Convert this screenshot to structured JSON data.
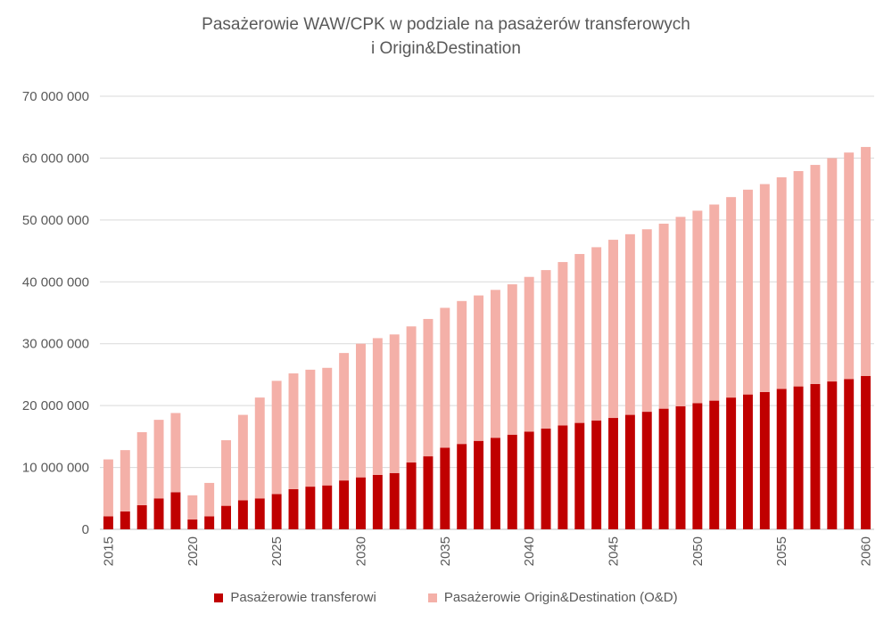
{
  "chart_data": {
    "type": "bar",
    "stacked": true,
    "title": "Pasażerowie WAW/CPK w podziale na pasażerów transferowych",
    "subtitle": "i Origin&Destination",
    "xlabel": "",
    "ylabel": "",
    "ylim": [
      0,
      70000000
    ],
    "y_ticks": [
      "0",
      "10 000 000",
      "20 000 000",
      "30 000 000",
      "40 000 000",
      "50 000 000",
      "60 000 000",
      "70 000 000"
    ],
    "y_tick_values": [
      0,
      10000000,
      20000000,
      30000000,
      40000000,
      50000000,
      60000000,
      70000000
    ],
    "x_tick_labels": [
      "2015",
      "2020",
      "2025",
      "2030",
      "2035",
      "2040",
      "2045",
      "2050",
      "2055",
      "2060"
    ],
    "grid": true,
    "legend_position": "bottom",
    "categories": [
      2015,
      2016,
      2017,
      2018,
      2019,
      2020,
      2021,
      2022,
      2023,
      2024,
      2025,
      2026,
      2027,
      2028,
      2029,
      2030,
      2031,
      2032,
      2033,
      2034,
      2035,
      2036,
      2037,
      2038,
      2039,
      2040,
      2041,
      2042,
      2043,
      2044,
      2045,
      2046,
      2047,
      2048,
      2049,
      2050,
      2051,
      2052,
      2053,
      2054,
      2055,
      2056,
      2057,
      2058,
      2059,
      2060
    ],
    "series": [
      {
        "name": "Pasażerowie transferowi",
        "color": "#c00000",
        "values": [
          2100000,
          2900000,
          3900000,
          5000000,
          6000000,
          1600000,
          2100000,
          3800000,
          4700000,
          5000000,
          5700000,
          6500000,
          6900000,
          7100000,
          7900000,
          8400000,
          8800000,
          9100000,
          10800000,
          11800000,
          13200000,
          13800000,
          14300000,
          14800000,
          15300000,
          15800000,
          16300000,
          16800000,
          17200000,
          17600000,
          18000000,
          18500000,
          19000000,
          19500000,
          19900000,
          20400000,
          20800000,
          21300000,
          21800000,
          22200000,
          22700000,
          23100000,
          23500000,
          23900000,
          24300000,
          24800000
        ]
      },
      {
        "name": "Pasażerowie Origin&Destination (O&D)",
        "color": "#f4b0a8",
        "values": [
          9200000,
          9900000,
          11800000,
          12700000,
          12800000,
          3900000,
          5400000,
          10600000,
          13800000,
          16300000,
          18300000,
          18700000,
          18900000,
          19000000,
          20600000,
          21600000,
          22100000,
          22400000,
          22000000,
          22200000,
          22600000,
          23100000,
          23500000,
          23900000,
          24300000,
          25000000,
          25600000,
          26400000,
          27300000,
          28000000,
          28800000,
          29200000,
          29500000,
          29900000,
          30600000,
          31100000,
          31700000,
          32400000,
          33100000,
          33600000,
          34200000,
          34800000,
          35400000,
          36100000,
          36600000,
          37000000
        ]
      }
    ]
  }
}
